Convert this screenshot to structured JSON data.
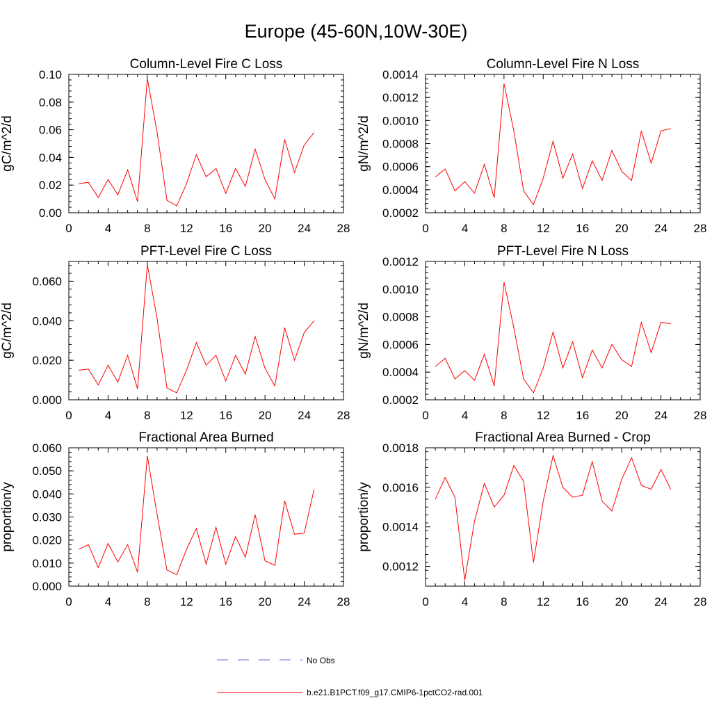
{
  "page_title": "Europe (45-60N,10W-30E)",
  "series_color": "#ff0000",
  "obs_color": "#6a6acd",
  "legend": {
    "obs_label": "No Obs",
    "model_label": "b.e21.B1PCT.f09_g17.CMIP6-1pctCO2-rad.001"
  },
  "chart_data": [
    {
      "type": "line",
      "title": "Column-Level Fire C Loss",
      "ylabel": "gC/m^2/d",
      "xlim": [
        0,
        28
      ],
      "xticks": [
        "0",
        "4",
        "8",
        "12",
        "16",
        "20",
        "24",
        "28"
      ],
      "ylim": [
        0,
        0.1
      ],
      "yticks": [
        "0.00",
        "0.02",
        "0.04",
        "0.06",
        "0.08",
        "0.10"
      ],
      "x": [
        1,
        2,
        3,
        4,
        5,
        6,
        7,
        8,
        9,
        10,
        11,
        12,
        13,
        14,
        15,
        16,
        17,
        18,
        19,
        20,
        21,
        22,
        23,
        24,
        25
      ],
      "series": [
        {
          "values": [
            0.021,
            0.022,
            0.011,
            0.024,
            0.013,
            0.031,
            0.008,
            0.097,
            0.058,
            0.009,
            0.005,
            0.021,
            0.042,
            0.026,
            0.032,
            0.014,
            0.032,
            0.019,
            0.046,
            0.024,
            0.01,
            0.053,
            0.029,
            0.049,
            0.058
          ]
        }
      ]
    },
    {
      "type": "line",
      "title": "Column-Level Fire N Loss",
      "ylabel": "gN/m^2/d",
      "xlim": [
        0,
        28
      ],
      "xticks": [
        "0",
        "4",
        "8",
        "12",
        "16",
        "20",
        "24",
        "28"
      ],
      "ylim": [
        0.0002,
        0.0014
      ],
      "yticks": [
        "0.0002",
        "0.0004",
        "0.0006",
        "0.0008",
        "0.0010",
        "0.0012",
        "0.0014"
      ],
      "x": [
        1,
        2,
        3,
        4,
        5,
        6,
        7,
        8,
        9,
        10,
        11,
        12,
        13,
        14,
        15,
        16,
        17,
        18,
        19,
        20,
        21,
        22,
        23,
        24,
        25
      ],
      "series": [
        {
          "values": [
            0.00051,
            0.00058,
            0.00039,
            0.00047,
            0.00037,
            0.00062,
            0.00033,
            0.00132,
            0.00091,
            0.00039,
            0.00027,
            0.0005,
            0.00082,
            0.0005,
            0.00071,
            0.00041,
            0.00065,
            0.00048,
            0.00074,
            0.00056,
            0.00048,
            0.00091,
            0.00063,
            0.00091,
            0.00093
          ]
        }
      ]
    },
    {
      "type": "line",
      "title": "PFT-Level Fire C Loss",
      "ylabel": "gC/m^2/d",
      "xlim": [
        0,
        28
      ],
      "xticks": [
        "0",
        "4",
        "8",
        "12",
        "16",
        "20",
        "24",
        "28"
      ],
      "ylim": [
        0,
        0.07
      ],
      "yticks": [
        "0.000",
        "0.020",
        "0.040",
        "0.060"
      ],
      "x": [
        1,
        2,
        3,
        4,
        5,
        6,
        7,
        8,
        9,
        10,
        11,
        12,
        13,
        14,
        15,
        16,
        17,
        18,
        19,
        20,
        21,
        22,
        23,
        24,
        25
      ],
      "series": [
        {
          "values": [
            0.015,
            0.0155,
            0.0075,
            0.0175,
            0.009,
            0.0225,
            0.0055,
            0.0685,
            0.041,
            0.006,
            0.0035,
            0.015,
            0.029,
            0.0175,
            0.0225,
            0.0095,
            0.0225,
            0.013,
            0.032,
            0.016,
            0.007,
            0.0365,
            0.02,
            0.034,
            0.04
          ]
        }
      ]
    },
    {
      "type": "line",
      "title": "PFT-Level Fire N Loss",
      "ylabel": "gN/m^2/d",
      "xlim": [
        0,
        28
      ],
      "xticks": [
        "0",
        "4",
        "8",
        "12",
        "16",
        "20",
        "24",
        "28"
      ],
      "ylim": [
        0.0002,
        0.0012
      ],
      "yticks": [
        "0.0002",
        "0.0004",
        "0.0006",
        "0.0008",
        "0.0010",
        "0.0012"
      ],
      "x": [
        1,
        2,
        3,
        4,
        5,
        6,
        7,
        8,
        9,
        10,
        11,
        12,
        13,
        14,
        15,
        16,
        17,
        18,
        19,
        20,
        21,
        22,
        23,
        24,
        25
      ],
      "series": [
        {
          "values": [
            0.00044,
            0.0005,
            0.00035,
            0.00041,
            0.00034,
            0.00053,
            0.0003,
            0.00105,
            0.00072,
            0.00035,
            0.00025,
            0.00043,
            0.00069,
            0.00043,
            0.00062,
            0.00036,
            0.00056,
            0.00043,
            0.0006,
            0.00049,
            0.00044,
            0.00076,
            0.00054,
            0.00076,
            0.00075
          ]
        }
      ]
    },
    {
      "type": "line",
      "title": "Fractional Area Burned",
      "ylabel": "proportion/y",
      "xlim": [
        0,
        28
      ],
      "xticks": [
        "0",
        "4",
        "8",
        "12",
        "16",
        "20",
        "24",
        "28"
      ],
      "ylim": [
        0,
        0.06
      ],
      "yticks": [
        "0.000",
        "0.010",
        "0.020",
        "0.030",
        "0.040",
        "0.050",
        "0.060"
      ],
      "x": [
        1,
        2,
        3,
        4,
        5,
        6,
        7,
        8,
        9,
        10,
        11,
        12,
        13,
        14,
        15,
        16,
        17,
        18,
        19,
        20,
        21,
        22,
        23,
        24,
        25
      ],
      "series": [
        {
          "values": [
            0.016,
            0.018,
            0.008,
            0.0185,
            0.0105,
            0.018,
            0.006,
            0.0565,
            0.031,
            0.007,
            0.005,
            0.016,
            0.025,
            0.0095,
            0.0255,
            0.0095,
            0.0215,
            0.0125,
            0.031,
            0.011,
            0.009,
            0.037,
            0.0225,
            0.023,
            0.042
          ]
        }
      ]
    },
    {
      "type": "line",
      "title": "Fractional Area Burned - Crop",
      "ylabel": "proportion/y",
      "xlim": [
        0,
        28
      ],
      "xticks": [
        "0",
        "4",
        "8",
        "12",
        "16",
        "20",
        "24",
        "28"
      ],
      "ylim": [
        0.0011,
        0.0018
      ],
      "yticks": [
        "0.0012",
        "0.0014",
        "0.0016",
        "0.0018"
      ],
      "x": [
        1,
        2,
        3,
        4,
        5,
        6,
        7,
        8,
        9,
        10,
        11,
        12,
        13,
        14,
        15,
        16,
        17,
        18,
        19,
        20,
        21,
        22,
        23,
        24,
        25
      ],
      "series": [
        {
          "values": [
            0.00154,
            0.00165,
            0.00155,
            0.00113,
            0.00143,
            0.00162,
            0.0015,
            0.00156,
            0.00171,
            0.00163,
            0.00122,
            0.00153,
            0.00176,
            0.0016,
            0.00155,
            0.00156,
            0.00173,
            0.00153,
            0.00148,
            0.00164,
            0.00175,
            0.00161,
            0.00159,
            0.00169,
            0.00159
          ]
        }
      ]
    }
  ]
}
